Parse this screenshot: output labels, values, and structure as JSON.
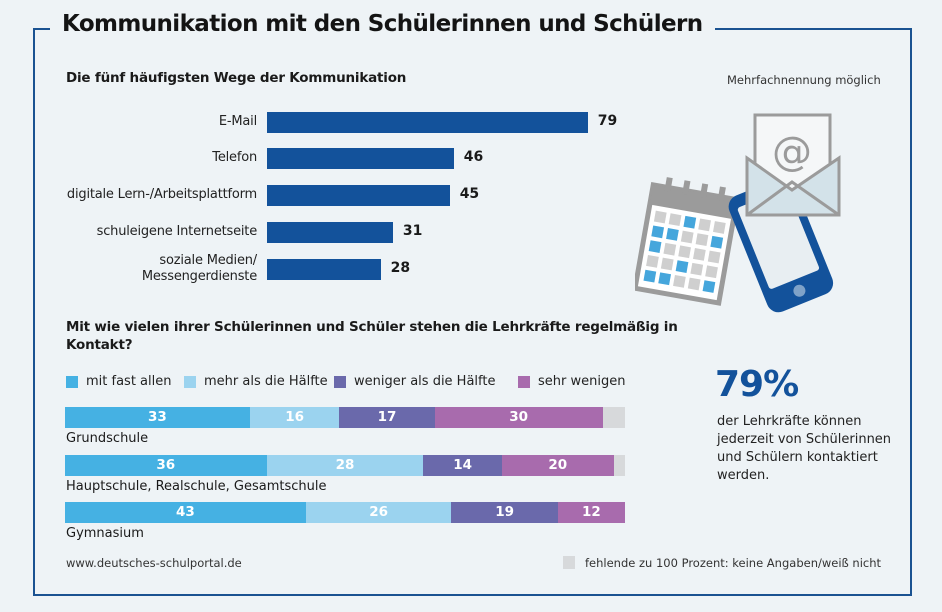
{
  "title": "Kommunikation mit den Schülerinnen und Schülern",
  "colors": {
    "frame": "#1a5291",
    "bar": "#13529b",
    "mit_fast_allen": "#45b1e3",
    "mehr_als_die_haelfte": "#9bd3ef",
    "weniger_als_die_haelfte": "#6a69ab",
    "sehr_wenigen": "#a86bad",
    "missing": "#d7d9db"
  },
  "note_multiple": "Mehrfachnennung möglich",
  "highlight": {
    "value": "79%",
    "text_lines": [
      "der Lehrkräfte können",
      "jederzeit von Schülerinnen",
      "und Schülern kontaktiert",
      "werden."
    ]
  },
  "footer": {
    "source": "www.deutsches-schulportal.de",
    "missing_note": "fehlende zu 100 Prozent: keine Angaben/weiß nicht"
  },
  "illustration": {
    "icons": [
      "calendar-icon",
      "smartphone-icon",
      "email-envelope-icon"
    ],
    "at_symbol": "@"
  },
  "chart_data": [
    {
      "type": "bar",
      "orientation": "horizontal",
      "title": "Die fünf häufigsten Wege der Kommunikation",
      "categories": [
        [
          "E-Mail"
        ],
        [
          "Telefon"
        ],
        [
          "digitale Lern-/Arbeitsplattform"
        ],
        [
          "schuleigene Internetseite"
        ],
        [
          "soziale Medien/",
          "Messengerdienste"
        ]
      ],
      "values": [
        79,
        46,
        45,
        31,
        28
      ],
      "value_labels": [
        "79",
        "46",
        "45",
        "31",
        "28"
      ],
      "xlim": [
        0,
        100
      ],
      "unit": "%",
      "grid": false
    },
    {
      "type": "bar",
      "stacked": true,
      "orientation": "horizontal",
      "title": "Mit wie vielen ihrer Schülerinnen und Schüler stehen die Lehrkräfte regelmäßig in Kontakt?",
      "legend": [
        "mit fast allen",
        "mehr als die Hälfte",
        "weniger als die Hälfte",
        "sehr wenigen"
      ],
      "legend_position": "top",
      "categories": [
        "Grundschule",
        "Hauptschule, Realschule, Gesamtschule",
        "Gymnasium"
      ],
      "series": [
        {
          "name": "mit fast allen",
          "values": [
            33,
            36,
            43
          ]
        },
        {
          "name": "mehr als die Hälfte",
          "values": [
            16,
            28,
            26
          ]
        },
        {
          "name": "weniger als die Hälfte",
          "values": [
            17,
            14,
            19
          ]
        },
        {
          "name": "sehr wenigen",
          "values": [
            30,
            20,
            12
          ]
        }
      ],
      "xlim": [
        0,
        100
      ],
      "unit": "%",
      "missing_label": "fehlende zu 100 Prozent: keine Angaben/weiß nicht"
    }
  ]
}
